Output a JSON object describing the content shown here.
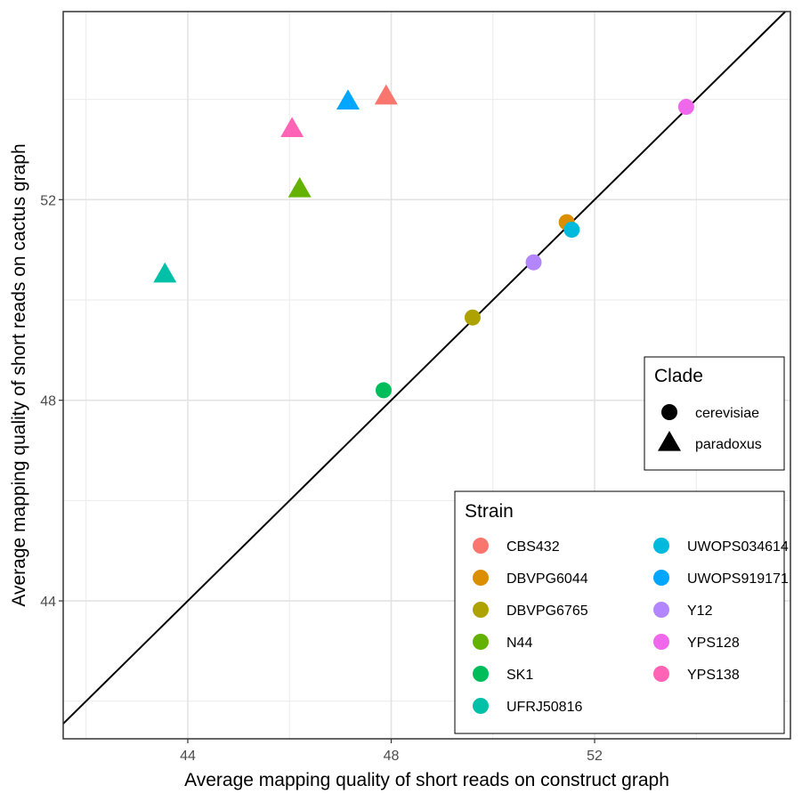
{
  "chart_data": {
    "type": "scatter",
    "xlabel": "Average mapping quality of short reads on construct graph",
    "ylabel": "Average mapping quality of short reads on cactus graph",
    "xlim": [
      41.55,
      55.85
    ],
    "ylim": [
      41.25,
      55.75
    ],
    "x_ticks": [
      44,
      48,
      52
    ],
    "y_ticks": [
      44,
      48,
      52
    ],
    "x_tick_labels": [
      "44",
      "48",
      "52"
    ],
    "y_tick_labels": [
      "44",
      "48",
      "52"
    ],
    "grid": true,
    "reference_line": "y = x",
    "clade_legend": {
      "title": "Clade",
      "placement": "right",
      "entries": [
        {
          "name": "cerevisiae",
          "shape": "circle"
        },
        {
          "name": "paradoxus",
          "shape": "triangle"
        }
      ]
    },
    "strain_legend": {
      "title": "Strain",
      "placement": "bottom-right",
      "columns": 2
    },
    "strains": [
      {
        "name": "CBS432",
        "color": "#F8766D"
      },
      {
        "name": "DBVPG6044",
        "color": "#DB8E00"
      },
      {
        "name": "DBVPG6765",
        "color": "#AEA200"
      },
      {
        "name": "N44",
        "color": "#64B200"
      },
      {
        "name": "SK1",
        "color": "#00BD5C"
      },
      {
        "name": "UFRJ50816",
        "color": "#00C1A7"
      },
      {
        "name": "UWOPS034614",
        "color": "#00BADE"
      },
      {
        "name": "UWOPS919171",
        "color": "#00A6FF"
      },
      {
        "name": "Y12",
        "color": "#B385FF"
      },
      {
        "name": "YPS128",
        "color": "#EF67EB"
      },
      {
        "name": "YPS138",
        "color": "#FF63B6"
      }
    ],
    "points": [
      {
        "strain": "CBS432",
        "clade": "paradoxus",
        "x": 47.9,
        "y": 54.05
      },
      {
        "strain": "UWOPS919171",
        "clade": "paradoxus",
        "x": 47.15,
        "y": 53.95
      },
      {
        "strain": "YPS138",
        "clade": "paradoxus",
        "x": 46.05,
        "y": 53.4
      },
      {
        "strain": "N44",
        "clade": "paradoxus",
        "x": 46.2,
        "y": 52.2
      },
      {
        "strain": "UFRJ50816",
        "clade": "paradoxus",
        "x": 43.55,
        "y": 50.5
      },
      {
        "strain": "YPS128",
        "clade": "cerevisiae",
        "x": 53.8,
        "y": 53.85
      },
      {
        "strain": "DBVPG6044",
        "clade": "cerevisiae",
        "x": 51.45,
        "y": 51.55
      },
      {
        "strain": "UWOPS034614",
        "clade": "cerevisiae",
        "x": 51.55,
        "y": 51.4
      },
      {
        "strain": "Y12",
        "clade": "cerevisiae",
        "x": 50.8,
        "y": 50.75
      },
      {
        "strain": "DBVPG6765",
        "clade": "cerevisiae",
        "x": 49.6,
        "y": 49.65
      },
      {
        "strain": "SK1",
        "clade": "cerevisiae",
        "x": 47.85,
        "y": 48.2
      }
    ]
  }
}
